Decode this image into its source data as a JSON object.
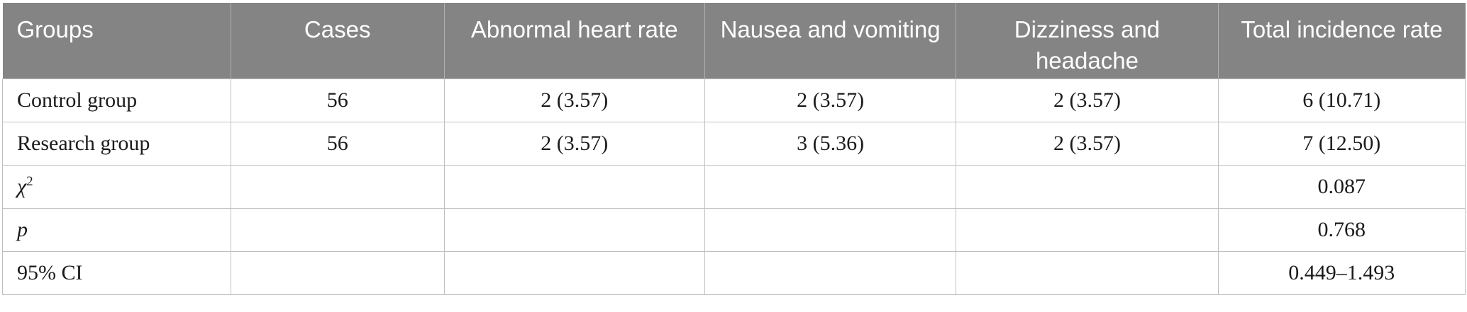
{
  "colors": {
    "header_bg": "#848484",
    "header_text": "#ffffff",
    "body_text": "#1b1b1b",
    "cell_border": "#c0c0c0",
    "header_separator": "#b0b0b0"
  },
  "table": {
    "columns": [
      {
        "label": "Groups"
      },
      {
        "label": "Cases"
      },
      {
        "label": "Abnormal heart rate"
      },
      {
        "label": "Nausea and vomiting"
      },
      {
        "label": "Dizziness and headache"
      },
      {
        "label": "Total incidence rate"
      }
    ],
    "rows": [
      {
        "label": "Control group",
        "cells": [
          "56",
          "2 (3.57)",
          "2 (3.57)",
          "2 (3.57)",
          "6 (10.71)"
        ]
      },
      {
        "label": "Research group",
        "cells": [
          "56",
          "2 (3.57)",
          "3 (5.36)",
          "2 (3.57)",
          "7 (12.50)"
        ]
      },
      {
        "label_base": "χ",
        "label_sup": "2",
        "cells": [
          "",
          "",
          "",
          "",
          "0.087"
        ]
      },
      {
        "label": "p",
        "cells": [
          "",
          "",
          "",
          "",
          "0.768"
        ]
      },
      {
        "label": "95% CI",
        "cells": [
          "",
          "",
          "",
          "",
          "0.449–1.493"
        ]
      }
    ]
  }
}
